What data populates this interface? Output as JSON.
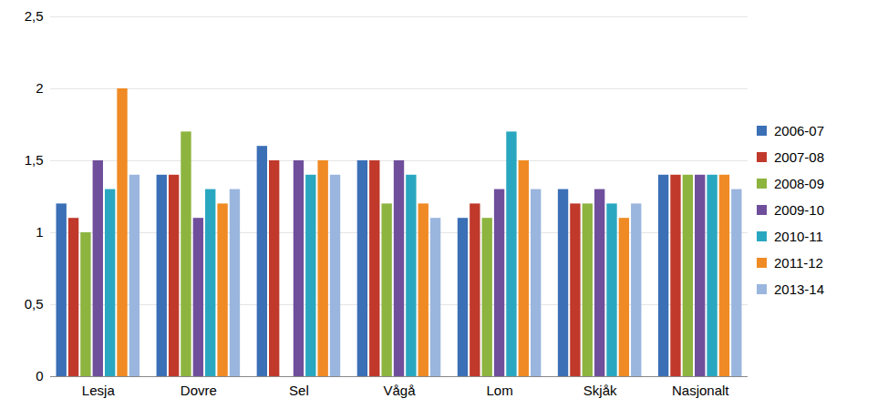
{
  "chart_data": {
    "type": "bar",
    "categories": [
      "Lesja",
      "Dovre",
      "Sel",
      "Vågå",
      "Lom",
      "Skjåk",
      "Nasjonalt"
    ],
    "series": [
      {
        "name": "2006-07",
        "color": "#3b6fb6",
        "values": [
          1.2,
          1.4,
          1.6,
          1.5,
          1.1,
          1.3,
          1.4
        ]
      },
      {
        "name": "2007-08",
        "color": "#c0392b",
        "values": [
          1.1,
          1.4,
          1.5,
          1.5,
          1.2,
          1.2,
          1.4
        ]
      },
      {
        "name": "2008-09",
        "color": "#8db43f",
        "values": [
          1.0,
          1.7,
          null,
          1.2,
          1.1,
          1.2,
          1.4
        ]
      },
      {
        "name": "2009-10",
        "color": "#6f4f9c",
        "values": [
          1.5,
          1.1,
          1.5,
          1.5,
          1.3,
          1.3,
          1.4
        ]
      },
      {
        "name": "2010-11",
        "color": "#2aa7c0",
        "values": [
          1.3,
          1.3,
          1.4,
          1.4,
          1.7,
          1.2,
          1.4
        ]
      },
      {
        "name": "2011-12",
        "color": "#f08a24",
        "values": [
          2.0,
          1.2,
          1.5,
          1.2,
          1.5,
          1.1,
          1.4
        ]
      },
      {
        "name": "2013-14",
        "color": "#9ab6de",
        "values": [
          1.4,
          1.3,
          1.4,
          1.1,
          1.3,
          1.2,
          1.3
        ]
      }
    ],
    "ylim": [
      0,
      2.5
    ],
    "yticks": [
      0,
      {
        "value": 0.5,
        "label": "0,5"
      },
      1,
      {
        "value": 1.5,
        "label": "1,5"
      },
      2,
      {
        "value": 2.5,
        "label": "2,5"
      }
    ],
    "grid": true,
    "legend": "right"
  }
}
